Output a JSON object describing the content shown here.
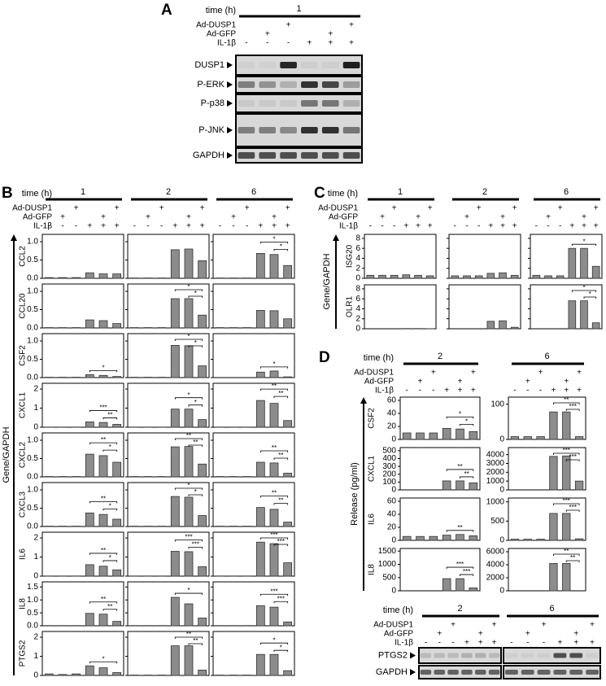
{
  "panel_A": {
    "label": "A",
    "time_label": "time (h)",
    "times": [
      "1"
    ],
    "treatments": [
      {
        "name": "Ad-DUSP1",
        "signs": [
          null,
          null,
          "+",
          null,
          null,
          "+"
        ]
      },
      {
        "name": "Ad-GFP",
        "signs": [
          null,
          "+",
          null,
          null,
          "+",
          null
        ]
      },
      {
        "name": "IL-1β",
        "signs": [
          "-",
          "-",
          "-",
          "+",
          "+",
          "+"
        ]
      }
    ],
    "blots": [
      "DUSP1",
      "P-ERK",
      "P-p38",
      "P-JNK",
      "GAPDH"
    ]
  },
  "panel_B": {
    "label": "B",
    "time_label": "time (h)",
    "times": [
      "1",
      "2",
      "6"
    ],
    "treatments": [
      {
        "name": "Ad-DUSP1",
        "signs": [
          null,
          null,
          "+",
          null,
          null,
          "+"
        ]
      },
      {
        "name": "Ad-GFP",
        "signs": [
          null,
          "+",
          null,
          null,
          "+",
          null
        ]
      },
      {
        "name": "IL-1β",
        "signs": [
          "-",
          "-",
          "-",
          "+",
          "+",
          "+"
        ]
      }
    ],
    "y_label": "Gene/GAPDH",
    "genes": [
      {
        "name": "CCL2",
        "ylim": [
          0,
          1.2
        ],
        "yticks": [
          {
            "value": 0,
            "label": "0.0"
          },
          0.5,
          {
            "value": 1,
            "label": "1.0"
          }
        ],
        "charts": [
          {
            "values": [
              0.02,
              0.02,
              0.02,
              0.15,
              0.12,
              0.12
            ],
            "significance": []
          },
          {
            "values": [
              0.01,
              0.01,
              0.01,
              0.78,
              0.8,
              0.48
            ],
            "significance": []
          },
          {
            "values": [
              0.01,
              0.01,
              0.01,
              0.68,
              0.65,
              0.35
            ],
            "significance": [
              "*",
              "*"
            ]
          }
        ]
      },
      {
        "name": "CCL20",
        "ylim": [
          0,
          1.2
        ],
        "yticks": [
          {
            "value": 0,
            "label": "0.0"
          },
          0.5,
          {
            "value": 1,
            "label": "1.0"
          }
        ],
        "charts": [
          {
            "values": [
              0.01,
              0.01,
              0.01,
              0.22,
              0.2,
              0.12
            ],
            "significance": []
          },
          {
            "values": [
              0.01,
              0.01,
              0.01,
              0.8,
              0.8,
              0.35
            ],
            "significance": [
              "*",
              "*"
            ]
          },
          {
            "values": [
              0.01,
              0.01,
              0.01,
              0.48,
              0.47,
              0.25
            ],
            "significance": []
          }
        ]
      },
      {
        "name": "CSF2",
        "ylim": [
          0,
          1.2
        ],
        "yticks": [
          {
            "value": 0,
            "label": "0.0"
          },
          0.5,
          {
            "value": 1,
            "label": "1.0"
          }
        ],
        "charts": [
          {
            "values": [
              0.01,
              0.01,
              0.01,
              0.08,
              0.06,
              0.03
            ],
            "significance": [
              "*"
            ]
          },
          {
            "values": [
              0.01,
              0.01,
              0.01,
              0.88,
              0.87,
              0.32
            ],
            "significance": [
              "*",
              "*"
            ]
          },
          {
            "values": [
              0,
              0,
              0,
              0.15,
              0.18,
              0.02
            ],
            "significance": [
              "*"
            ]
          }
        ]
      },
      {
        "name": "CXCL1",
        "ylim": [
          0,
          2.3
        ],
        "yticks": [
          0,
          1,
          2
        ],
        "charts": [
          {
            "values": [
              0.01,
              0.01,
              0.01,
              0.28,
              0.25,
              0.15
            ],
            "significance": [
              "***",
              "**"
            ]
          },
          {
            "values": [
              0.01,
              0.01,
              0.01,
              0.95,
              0.95,
              0.4
            ],
            "significance": [
              "*",
              "*"
            ]
          },
          {
            "values": [
              0.01,
              0.01,
              0.01,
              1.4,
              1.25,
              0.35
            ],
            "significance": [
              "**",
              "**"
            ]
          }
        ]
      },
      {
        "name": "CXCL2",
        "ylim": [
          0,
          1.2
        ],
        "yticks": [
          {
            "value": 0,
            "label": "0.0"
          },
          0.5,
          {
            "value": 1,
            "label": "1.0"
          }
        ],
        "charts": [
          {
            "values": [
              0.01,
              0.01,
              0.01,
              0.62,
              0.58,
              0.4
            ],
            "significance": [
              "**",
              "*"
            ]
          },
          {
            "values": [
              0.01,
              0.01,
              0.01,
              0.82,
              0.83,
              0.35
            ],
            "significance": [
              "**",
              "**"
            ]
          },
          {
            "values": [
              0.01,
              0.01,
              0.01,
              0.4,
              0.38,
              0.1
            ],
            "significance": [
              "**",
              "**"
            ]
          }
        ]
      },
      {
        "name": "CXCL3",
        "ylim": [
          0,
          1.2
        ],
        "yticks": [
          {
            "value": 0,
            "label": "0.0"
          },
          0.5,
          {
            "value": 1,
            "label": "1.0"
          }
        ],
        "charts": [
          {
            "values": [
              0.01,
              0.01,
              0.01,
              0.37,
              0.33,
              0.2
            ],
            "significance": [
              "**",
              "*"
            ]
          },
          {
            "values": [
              0.01,
              0.01,
              0.01,
              0.82,
              0.8,
              0.3
            ],
            "significance": [
              "*",
              "*"
            ]
          },
          {
            "values": [
              0.01,
              0.01,
              0.01,
              0.52,
              0.47,
              0.12
            ],
            "significance": [
              "**",
              "**"
            ]
          }
        ]
      },
      {
        "name": "IL6",
        "ylim": [
          0,
          2.3
        ],
        "yticks": [
          0,
          1,
          2
        ],
        "charts": [
          {
            "values": [
              0.01,
              0.01,
              0.01,
              0.6,
              0.52,
              0.33
            ],
            "significance": [
              "**",
              "*"
            ]
          },
          {
            "values": [
              0.01,
              0.01,
              0.01,
              1.3,
              1.28,
              0.5
            ],
            "significance": [
              "***",
              "***"
            ]
          },
          {
            "values": [
              0.01,
              0.01,
              0.01,
              1.78,
              1.7,
              0.7
            ],
            "significance": [
              "***",
              "***"
            ]
          }
        ]
      },
      {
        "name": "IL8",
        "ylim": [
          0,
          1.7
        ],
        "yticks": [
          {
            "value": 0,
            "label": "0.0"
          },
          0.5,
          {
            "value": 1,
            "label": "1.0"
          },
          1.5
        ],
        "charts": [
          {
            "values": [
              0.01,
              0.01,
              0.01,
              0.48,
              0.45,
              0.17
            ],
            "significance": [
              "**",
              "**"
            ]
          },
          {
            "values": [
              0.01,
              0.01,
              0.01,
              1.1,
              0.85,
              0.3
            ],
            "significance": [
              "*"
            ]
          },
          {
            "values": [
              0.01,
              0.01,
              0.01,
              0.78,
              0.72,
              0.15
            ],
            "significance": [
              "***",
              "***"
            ]
          }
        ]
      },
      {
        "name": "PTGS2",
        "ylim": [
          0,
          2.3
        ],
        "yticks": [
          0,
          1,
          2
        ],
        "charts": [
          {
            "values": [
              0.08,
              0.05,
              0.08,
              0.5,
              0.4,
              0.15
            ],
            "significance": [
              "*"
            ]
          },
          {
            "values": [
              0.02,
              0.02,
              0.02,
              1.55,
              1.55,
              0.28
            ],
            "significance": [
              "**",
              "**"
            ]
          },
          {
            "values": [
              0.02,
              0.02,
              0.02,
              1.1,
              1.1,
              0.25
            ],
            "significance": [
              "*",
              "*"
            ]
          }
        ]
      }
    ]
  },
  "panel_C": {
    "label": "C",
    "time_label": "time (h)",
    "times": [
      "1",
      "2",
      "6"
    ],
    "treatments": [
      {
        "name": "Ad-DUSP1",
        "signs": [
          null,
          null,
          "+",
          null,
          null,
          "+"
        ]
      },
      {
        "name": "Ad-GFP",
        "signs": [
          null,
          "+",
          null,
          null,
          "+",
          null
        ]
      },
      {
        "name": "IL-1β",
        "signs": [
          "-",
          "-",
          "-",
          "+",
          "+",
          "+"
        ]
      }
    ],
    "y_label": "Gene/GAPDH",
    "genes": [
      {
        "name": "ISG20",
        "ylim": [
          0,
          8.8
        ],
        "yticks": [
          0,
          2,
          4,
          6,
          8
        ],
        "charts": [
          {
            "values": [
              0.6,
              0.6,
              0.6,
              0.7,
              0.6,
              0.5
            ],
            "significance": []
          },
          {
            "values": [
              0.5,
              0.5,
              0.5,
              1.0,
              1.1,
              0.6
            ],
            "significance": []
          },
          {
            "values": [
              0.6,
              0.5,
              0.5,
              6.0,
              6.0,
              2.4
            ],
            "significance": [
              "*"
            ]
          }
        ]
      },
      {
        "name": "OLR1",
        "ylim": [
          0,
          8.8
        ],
        "yticks": [
          0,
          2,
          4,
          6,
          8
        ],
        "charts": [
          {
            "values": [
              0,
              0,
              0,
              0.05,
              0.05,
              0.02
            ],
            "significance": []
          },
          {
            "values": [
              0,
              0,
              0,
              1.5,
              1.6,
              0.3
            ],
            "significance": []
          },
          {
            "values": [
              0,
              0,
              0,
              5.6,
              5.6,
              1.2
            ],
            "significance": [
              "*",
              "*"
            ]
          }
        ]
      }
    ]
  },
  "panel_D": {
    "label": "D",
    "time_label": "time (h)",
    "times": [
      "2",
      "6"
    ],
    "treatments": [
      {
        "name": "Ad-DUSP1",
        "signs": [
          null,
          null,
          "+",
          null,
          null,
          "+"
        ]
      },
      {
        "name": "Ad-GFP",
        "signs": [
          null,
          "+",
          null,
          null,
          "+",
          null
        ]
      },
      {
        "name": "IL-1β",
        "signs": [
          "-",
          "-",
          "-",
          "+",
          "+",
          "+"
        ]
      }
    ],
    "y_label": "Release (pg/ml)",
    "genes": [
      {
        "name": "CSF2",
        "charts": [
          {
            "ylim": [
              0,
              65
            ],
            "yticks": [
              0,
              20,
              40,
              60
            ],
            "values": [
              10,
              10,
              10,
              17,
              16,
              12
            ],
            "significance": [
              "*",
              "*"
            ]
          },
          {
            "ylim": [
              0,
              120
            ],
            "yticks": [
              0,
              100
            ],
            "values": [
              8,
              8,
              8,
              78,
              78,
              8
            ],
            "significance": [
              "**",
              "***"
            ]
          }
        ]
      },
      {
        "name": "CXCL1",
        "charts": [
          {
            "ylim": [
              0,
              540
            ],
            "yticks": [
              0,
              100,
              200,
              300,
              400,
              500
            ],
            "values": [
              0,
              0,
              0,
              115,
              115,
              90
            ],
            "significance": [
              "**",
              "**"
            ]
          },
          {
            "ylim": [
              0,
              4800
            ],
            "yticks": [
              0,
              1000,
              2000,
              3000,
              4000
            ],
            "values": [
              0,
              0,
              0,
              3800,
              3850,
              1000
            ],
            "significance": [
              "***",
              "***"
            ]
          }
        ]
      },
      {
        "name": "IL6",
        "charts": [
          {
            "ylim": [
              0,
              65
            ],
            "yticks": [
              0,
              20,
              40,
              60
            ],
            "values": [
              6,
              6,
              6,
              8,
              9,
              7
            ],
            "significance": [
              "**"
            ]
          },
          {
            "ylim": [
              0,
              1100
            ],
            "yticks": [
              0,
              500,
              1000
            ],
            "values": [
              30,
              30,
              30,
              700,
              700,
              40
            ],
            "significance": [
              "***",
              "***"
            ]
          }
        ]
      },
      {
        "name": "IL8",
        "charts": [
          {
            "ylim": [
              0,
              1600
            ],
            "yticks": [
              0,
              500,
              1000,
              1500
            ],
            "values": [
              0,
              0,
              0,
              460,
              460,
              110
            ],
            "significance": [
              "***",
              "***"
            ]
          },
          {
            "ylim": [
              0,
              6500
            ],
            "yticks": [
              0,
              2000,
              4000,
              6000
            ],
            "values": [
              0,
              0,
              0,
              4200,
              4200,
              0
            ],
            "significance": [
              "**",
              "**"
            ]
          }
        ]
      }
    ],
    "blot": {
      "time_label": "time (h)",
      "times": [
        "2",
        "6"
      ],
      "treatments": [
        {
          "name": "Ad-DUSP1",
          "signs": [
            null,
            null,
            "+",
            null,
            null,
            "+"
          ]
        },
        {
          "name": "Ad-GFP",
          "signs": [
            null,
            "+",
            null,
            null,
            "+",
            null
          ]
        },
        {
          "name": "IL-1β",
          "signs": [
            "-",
            "-",
            "-",
            "+",
            "+",
            "+"
          ]
        }
      ],
      "blots": [
        "PTGS2",
        "GAPDH"
      ]
    }
  }
}
